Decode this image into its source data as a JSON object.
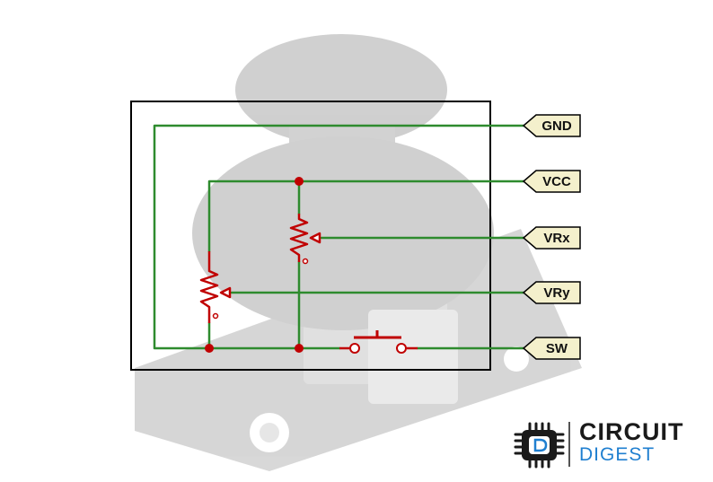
{
  "pins": [
    {
      "label": "GND"
    },
    {
      "label": "VCC"
    },
    {
      "label": "VRx"
    },
    {
      "label": "VRy"
    },
    {
      "label": "SW"
    }
  ],
  "colors": {
    "wire": "#2e8b2e",
    "component": "#c00000",
    "node": "#c00000",
    "pin_fill": "#f4f0cc",
    "frame": "#000000",
    "brand_blue": "#1f7fd0"
  },
  "logo": {
    "line1": "CIRCUIT",
    "line2": "DIGEST",
    "icon": "chip-d-icon"
  },
  "background": {
    "icon": "joystick-module-photo"
  }
}
